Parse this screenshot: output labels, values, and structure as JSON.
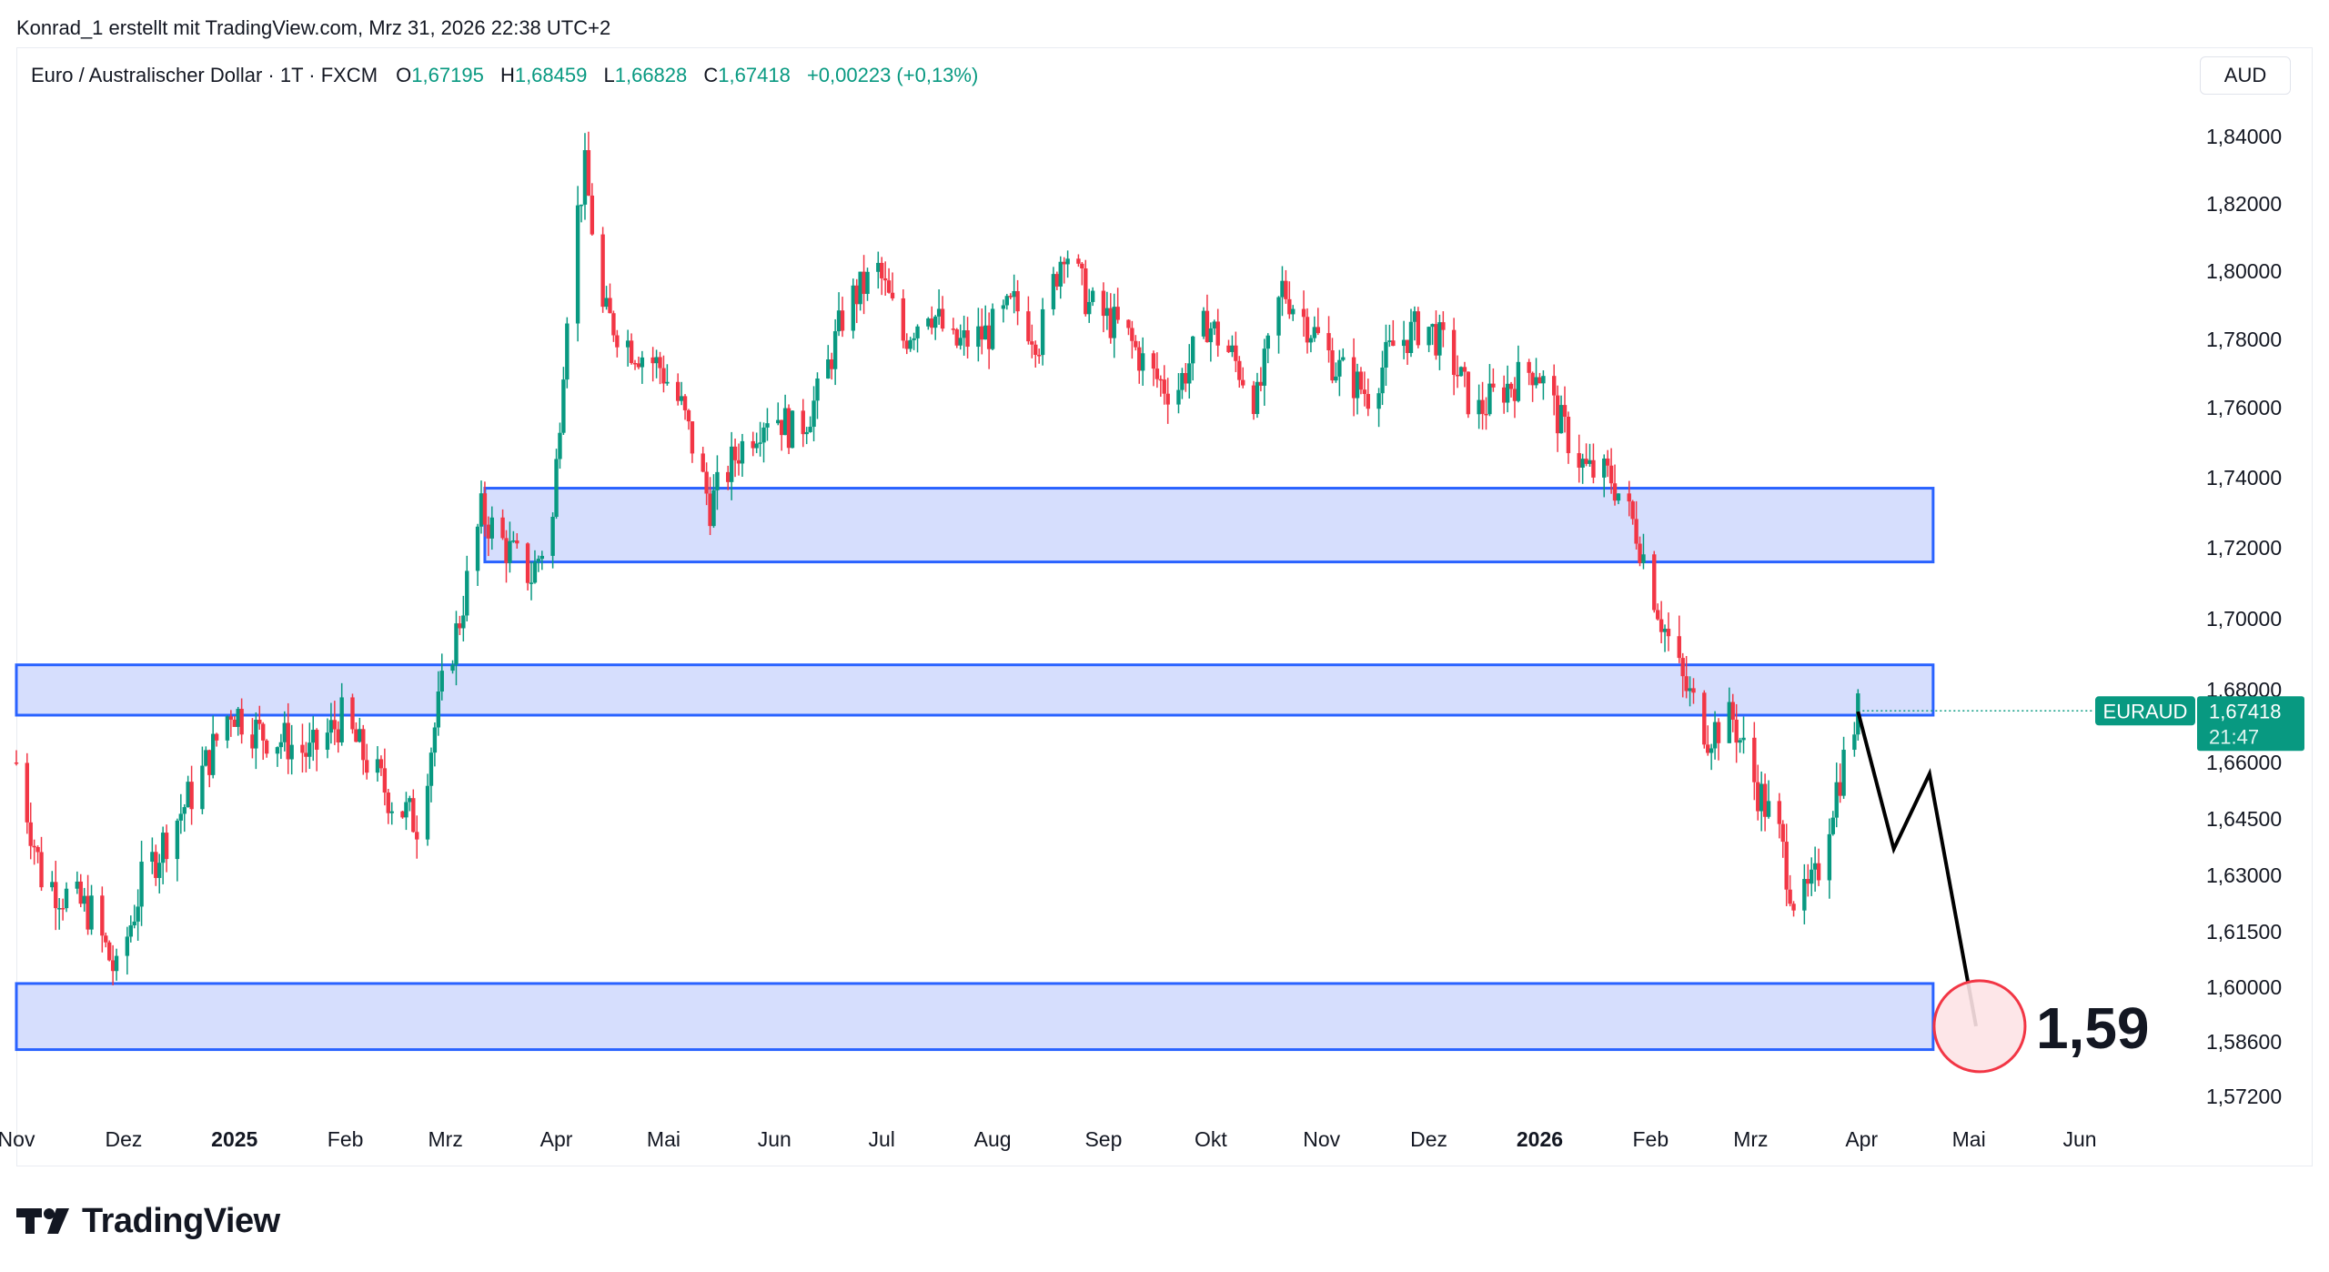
{
  "caption": "Konrad_1 erstellt mit TradingView.com, Mrz 31, 2026 22:38 UTC+2",
  "legend": {
    "symbol": "Euro / Australischer Dollar · 1T · FXCM",
    "open_label": "O",
    "open": "1,67195",
    "high_label": "H",
    "high": "1,68459",
    "low_label": "L",
    "low": "1,66828",
    "close_label": "C",
    "close": "1,67418",
    "change": "+0,00223 (+0,13%)"
  },
  "currency": "AUD",
  "price_tag": {
    "ticker": "EURAUD",
    "price": "1,67418",
    "countdown": "21:47"
  },
  "target_label": "1,59",
  "brand": "TradingView",
  "colors": {
    "up": "#089981",
    "down": "#f23645",
    "zone_fill": "#d4dcfd",
    "zone_stroke": "#2962ff",
    "tag": "#089981"
  },
  "chart_data": {
    "type": "candlestick",
    "y_ticks": [
      "1,84000",
      "1,82000",
      "1,80000",
      "1,78000",
      "1,76000",
      "1,74000",
      "1,72000",
      "1,70000",
      "1,68000",
      "1,66000",
      "1,64500",
      "1,63000",
      "1,61500",
      "1,60000",
      "1,58600",
      "1,57200"
    ],
    "x_ticks": [
      {
        "label": "Nov",
        "date": "2024-11-01"
      },
      {
        "label": "Dez",
        "date": "2024-12-01"
      },
      {
        "label": "2025",
        "date": "2025-01-01",
        "bold": true
      },
      {
        "label": "Feb",
        "date": "2025-02-01"
      },
      {
        "label": "Mrz",
        "date": "2025-03-01"
      },
      {
        "label": "Apr",
        "date": "2025-04-01"
      },
      {
        "label": "Mai",
        "date": "2025-05-01"
      },
      {
        "label": "Jun",
        "date": "2025-06-01"
      },
      {
        "label": "Jul",
        "date": "2025-07-01"
      },
      {
        "label": "Aug",
        "date": "2025-08-01"
      },
      {
        "label": "Sep",
        "date": "2025-09-01"
      },
      {
        "label": "Okt",
        "date": "2025-10-01"
      },
      {
        "label": "Nov",
        "date": "2025-11-01"
      },
      {
        "label": "Dez",
        "date": "2025-12-01"
      },
      {
        "label": "2026",
        "date": "2026-01-01",
        "bold": true
      },
      {
        "label": "Feb",
        "date": "2026-02-01"
      },
      {
        "label": "Mrz",
        "date": "2026-03-01"
      },
      {
        "label": "Apr",
        "date": "2026-04-01"
      },
      {
        "label": "Mai",
        "date": "2026-05-01"
      },
      {
        "label": "Jun",
        "date": "2026-06-01"
      }
    ],
    "date_range": [
      "2024-11-01",
      "2026-06-30"
    ],
    "price_path": [
      [
        "2024-11-01",
        1.66
      ],
      [
        "2024-11-08",
        1.63
      ],
      [
        "2024-11-14",
        1.625
      ],
      [
        "2024-11-22",
        1.62
      ],
      [
        "2024-11-29",
        1.603
      ],
      [
        "2024-12-06",
        1.628
      ],
      [
        "2024-12-14",
        1.642
      ],
      [
        "2024-12-22",
        1.655
      ],
      [
        "2024-12-31",
        1.675
      ],
      [
        "2025-01-08",
        1.668
      ],
      [
        "2025-01-15",
        1.666
      ],
      [
        "2025-01-22",
        1.662
      ],
      [
        "2025-01-31",
        1.672
      ],
      [
        "2025-02-06",
        1.662
      ],
      [
        "2025-02-14",
        1.65
      ],
      [
        "2025-02-21",
        1.644
      ],
      [
        "2025-02-28",
        1.68
      ],
      [
        "2025-03-05",
        1.7
      ],
      [
        "2025-03-11",
        1.73
      ],
      [
        "2025-03-18",
        1.72
      ],
      [
        "2025-03-25",
        1.712
      ],
      [
        "2025-03-31",
        1.728
      ],
      [
        "2025-04-05",
        1.805
      ],
      [
        "2025-04-09",
        1.83
      ],
      [
        "2025-04-14",
        1.788
      ],
      [
        "2025-04-22",
        1.778
      ],
      [
        "2025-04-30",
        1.772
      ],
      [
        "2025-05-06",
        1.76
      ],
      [
        "2025-05-14",
        1.732
      ],
      [
        "2025-05-22",
        1.748
      ],
      [
        "2025-05-31",
        1.76
      ],
      [
        "2025-06-07",
        1.752
      ],
      [
        "2025-06-14",
        1.765
      ],
      [
        "2025-06-21",
        1.79
      ],
      [
        "2025-06-30",
        1.8
      ],
      [
        "2025-07-07",
        1.78
      ],
      [
        "2025-07-14",
        1.79
      ],
      [
        "2025-07-21",
        1.778
      ],
      [
        "2025-07-31",
        1.782
      ],
      [
        "2025-08-07",
        1.79
      ],
      [
        "2025-08-14",
        1.78
      ],
      [
        "2025-08-21",
        1.808
      ],
      [
        "2025-08-28",
        1.79
      ],
      [
        "2025-09-07",
        1.782
      ],
      [
        "2025-09-14",
        1.77
      ],
      [
        "2025-09-21",
        1.764
      ],
      [
        "2025-09-30",
        1.785
      ],
      [
        "2025-10-07",
        1.775
      ],
      [
        "2025-10-14",
        1.762
      ],
      [
        "2025-10-21",
        1.795
      ],
      [
        "2025-10-28",
        1.785
      ],
      [
        "2025-11-05",
        1.772
      ],
      [
        "2025-11-14",
        1.764
      ],
      [
        "2025-11-21",
        1.778
      ],
      [
        "2025-11-30",
        1.785
      ],
      [
        "2025-12-07",
        1.775
      ],
      [
        "2025-12-14",
        1.758
      ],
      [
        "2025-12-21",
        1.765
      ],
      [
        "2025-12-31",
        1.772
      ],
      [
        "2026-01-07",
        1.755
      ],
      [
        "2026-01-14",
        1.742
      ],
      [
        "2026-01-21",
        1.74
      ],
      [
        "2026-01-28",
        1.725
      ],
      [
        "2026-02-04",
        1.7
      ],
      [
        "2026-02-10",
        1.682
      ],
      [
        "2026-02-17",
        1.668
      ],
      [
        "2026-02-24",
        1.672
      ],
      [
        "2026-03-02",
        1.655
      ],
      [
        "2026-03-09",
        1.64
      ],
      [
        "2026-03-14",
        1.62
      ],
      [
        "2026-03-19",
        1.628
      ],
      [
        "2026-03-24",
        1.65
      ],
      [
        "2026-03-31",
        1.674
      ]
    ],
    "zones": [
      {
        "from_date": "2025-03-12",
        "to_date": "2026-04-21",
        "top": 1.737,
        "bottom": 1.716
      },
      {
        "from_date": "2024-11-01",
        "to_date": "2026-04-21",
        "top": 1.687,
        "bottom": 1.673
      },
      {
        "from_date": "2024-11-01",
        "to_date": "2026-04-21",
        "top": 1.601,
        "bottom": 1.584
      }
    ],
    "projection": [
      [
        "2026-03-31",
        1.674
      ],
      [
        "2026-04-10",
        1.637
      ],
      [
        "2026-04-20",
        1.657
      ],
      [
        "2026-05-03",
        1.59
      ]
    ],
    "target": {
      "date": "2026-05-04",
      "price": 1.59
    },
    "last_price": 1.67418
  }
}
